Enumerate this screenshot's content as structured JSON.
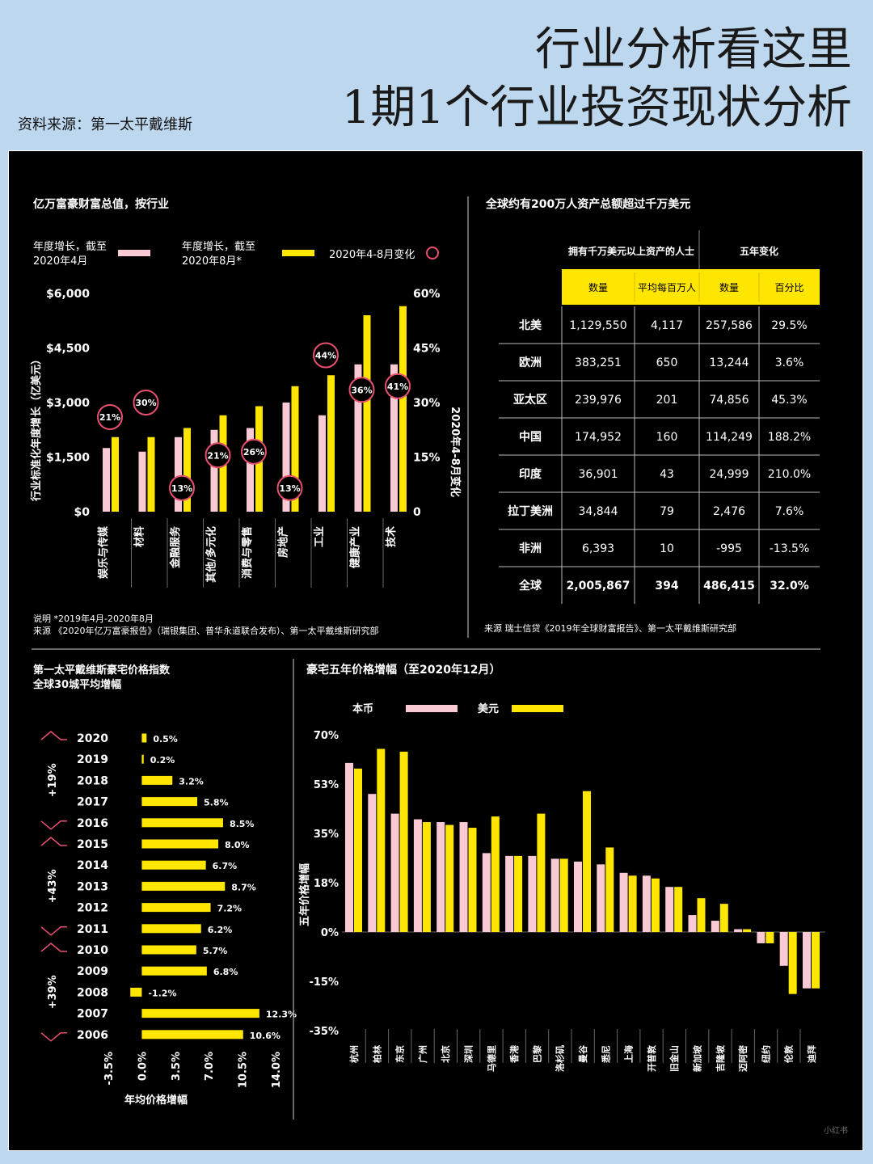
{
  "header": {
    "title_line1": "行业分析看这里",
    "title_line2": "1期1个行业投资现状分析",
    "source": "资料来源：第一太平戴维斯"
  },
  "colors": {
    "pink": "#f9c9d4",
    "yellow": "#ffe600",
    "circle": "#e9506f",
    "white": "#ffffff",
    "black": "#000000"
  },
  "watermark": "小红书",
  "chart_data": [
    {
      "id": "billionaire-wealth",
      "type": "bar",
      "title": "亿万富豪财富总值，按行业",
      "legend": {
        "pink": "年度增长，截至\n2020年4月",
        "yellow": "年度增长，截至\n2020年8月*",
        "circle": "2020年4-8月变化"
      },
      "ylabel_left": "行业标准化年度增长（亿美元）",
      "ylabel_right": "2020年4-8月变化",
      "yticks_left": [
        "$0",
        "$1,500",
        "$3,000",
        "$4,500",
        "$6,000"
      ],
      "yticks_right": [
        "0",
        "15%",
        "30%",
        "45%",
        "60%"
      ],
      "ylim": [
        0,
        6000
      ],
      "categories": [
        "娱乐与传媒",
        "材料",
        "金融服务",
        "其他/多元化",
        "消费与零售",
        "房地产",
        "工业",
        "健康产业",
        "技术"
      ],
      "series": [
        {
          "name": "年度增长，截至2020年4月",
          "values": [
            1750,
            1650,
            2050,
            2250,
            2300,
            3000,
            2650,
            4050,
            4050
          ]
        },
        {
          "name": "年度增长，截至2020年8月*",
          "values": [
            2050,
            2050,
            2300,
            2650,
            2900,
            3450,
            3750,
            5400,
            5650
          ]
        }
      ],
      "changes": [
        {
          "label": "21%",
          "y": 2600
        },
        {
          "label": "30%",
          "y": 3000
        },
        {
          "label": "13%",
          "y": 650
        },
        {
          "label": "21%",
          "y": 1550
        },
        {
          "label": "26%",
          "y": 1650
        },
        {
          "label": "13%",
          "y": 650
        },
        {
          "label": "44%",
          "y": 4300
        },
        {
          "label": "36%",
          "y": 3350
        },
        {
          "label": "41%",
          "y": 3450
        }
      ],
      "notes": [
        "说明  *2019年4月-2020年8月",
        "来源 《2020年亿万富豪报告》（瑞银集团、普华永道联合发布）、第一太平戴维斯研究部"
      ]
    },
    {
      "id": "global-hnw",
      "type": "table",
      "title": "全球约有200万人资产总额超过千万美元",
      "group_headers": [
        "拥有千万美元以上资产的人士",
        "五年变化"
      ],
      "columns": [
        "数量",
        "平均每百万人",
        "数量",
        "百分比"
      ],
      "rows": [
        [
          "北美",
          "1,129,550",
          "4,117",
          "257,586",
          "29.5%"
        ],
        [
          "欧洲",
          "383,251",
          "650",
          "13,244",
          "3.6%"
        ],
        [
          "亚太区",
          "239,976",
          "201",
          "74,856",
          "45.3%"
        ],
        [
          "中国",
          "174,952",
          "160",
          "114,249",
          "188.2%"
        ],
        [
          "印度",
          "36,901",
          "43",
          "24,999",
          "210.0%"
        ],
        [
          "拉丁美洲",
          "34,844",
          "79",
          "2,476",
          "7.6%"
        ],
        [
          "非洲",
          "6,393",
          "10",
          "-995",
          "-13.5%"
        ],
        [
          "全球",
          "2,005,867",
          "394",
          "486,415",
          "32.0%"
        ]
      ],
      "source": "来源  瑞士信贷《2019年全球财富报告》、第一太平戴维斯研究部"
    },
    {
      "id": "luxury-index",
      "type": "bar",
      "orientation": "horizontal",
      "title": "第一太平戴维斯豪宅价格指数\n全球30城平均增幅",
      "categories": [
        "2020",
        "2019",
        "2018",
        "2017",
        "2016",
        "2015",
        "2014",
        "2013",
        "2012",
        "2011",
        "2010",
        "2009",
        "2008",
        "2007",
        "2006"
      ],
      "values": [
        0.5,
        0.2,
        3.2,
        5.8,
        8.5,
        8.0,
        6.7,
        8.7,
        7.2,
        6.2,
        5.7,
        6.8,
        -1.2,
        12.3,
        10.6
      ],
      "labels": [
        "0.5%",
        "0.2%",
        "3.2%",
        "5.8%",
        "8.5%",
        "8.0%",
        "6.7%",
        "8.7%",
        "7.2%",
        "6.2%",
        "5.7%",
        "6.8%",
        "-1.2%",
        "12.3%",
        "10.6%"
      ],
      "xticks": [
        "-3.5%",
        "0.0%",
        "3.5%",
        "7.0%",
        "10.5%",
        "14.0%"
      ],
      "xlim": [
        -3.5,
        14.0
      ],
      "xlabel": "年均价格增幅",
      "brackets": [
        {
          "label": "+19%",
          "from": "2020",
          "to": "2016"
        },
        {
          "label": "+43%",
          "from": "2015",
          "to": "2011"
        },
        {
          "label": "+39%",
          "from": "2010",
          "to": "2006"
        }
      ]
    },
    {
      "id": "five-year-growth",
      "type": "bar",
      "title": "豪宅五年价格增幅（至2020年12月）",
      "legend": [
        "本币",
        "美元"
      ],
      "ylabel": "五年价格增幅",
      "yticks": [
        "70%",
        "53%",
        "35%",
        "18%",
        "0%",
        "-15%",
        "-35%"
      ],
      "ylim": [
        -35,
        70
      ],
      "categories": [
        "杭州",
        "柏林",
        "东京",
        "广州",
        "北京",
        "深圳",
        "马德里",
        "香港",
        "巴黎",
        "洛杉矶",
        "曼谷",
        "悉尼",
        "上海",
        "开普敦",
        "旧金山",
        "新加坡",
        "吉隆坡",
        "迈阿密",
        "纽约",
        "伦敦",
        "迪拜"
      ],
      "series": [
        {
          "name": "本币",
          "values": [
            60,
            49,
            42,
            40,
            39,
            39,
            28,
            27,
            27,
            26,
            25,
            24,
            21,
            20,
            16,
            6,
            4,
            1,
            -4,
            -12,
            -20
          ]
        },
        {
          "name": "美元",
          "values": [
            58,
            65,
            64,
            39,
            38,
            37,
            41,
            27,
            42,
            26,
            50,
            30,
            20,
            19,
            16,
            12,
            10,
            1,
            -4,
            -22,
            -20
          ]
        }
      ]
    }
  ]
}
